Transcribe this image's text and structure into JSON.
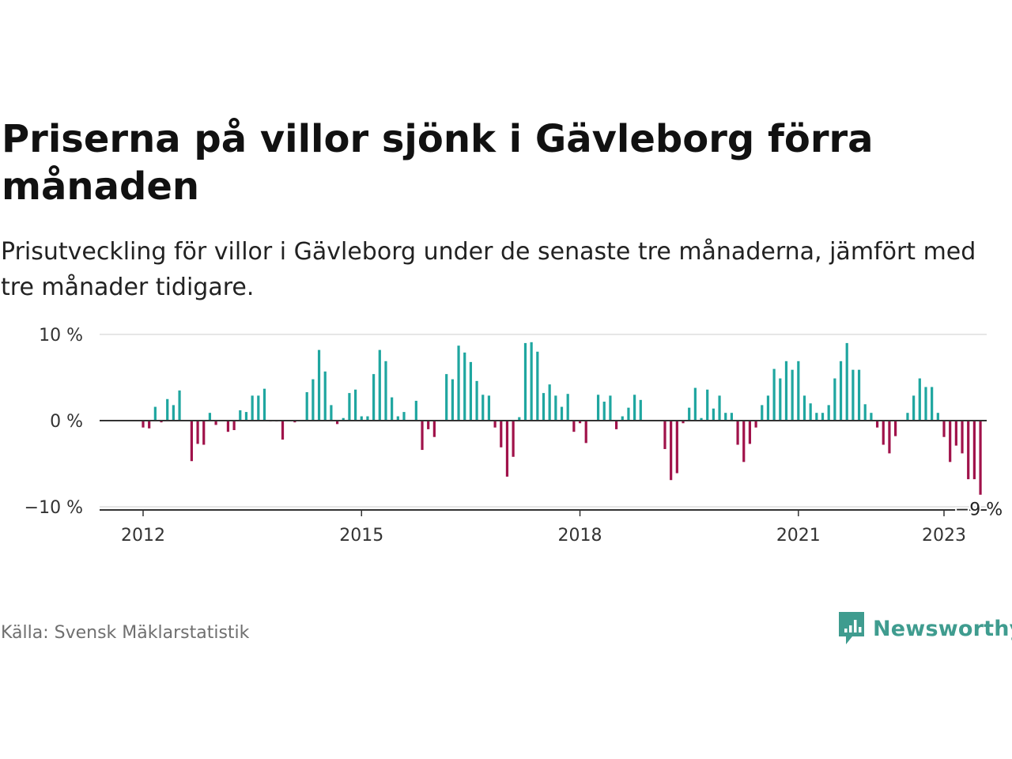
{
  "title": "Priserna på villor sjönk i Gävleborg förra månaden",
  "subtitle": "Prisutveckling för villor i Gävleborg under de senaste tre månaderna, jämfört med tre månader tidigare.",
  "source": "Källa: Svensk Mäklarstatistik",
  "brand": {
    "name": "Newsworthy",
    "icon": "newsworthy-logo-icon",
    "color": "#3f9c8f"
  },
  "colors": {
    "positive": "#1fa6a0",
    "negative": "#a0124a",
    "zero_line": "#333333",
    "grid": "#dddddd"
  },
  "chart_data": {
    "type": "bar",
    "x_start": "2012-01",
    "x_end": "2023-01",
    "x_ticks": [
      {
        "date": "2012-01",
        "label": "2012"
      },
      {
        "date": "2015-01",
        "label": "2015"
      },
      {
        "date": "2018-01",
        "label": "2018"
      },
      {
        "date": "2021-01",
        "label": "2021"
      },
      {
        "date": "2023-01",
        "label": "2023"
      }
    ],
    "y_ticks": [
      {
        "value": 10,
        "label": "10 %"
      },
      {
        "value": 0,
        "label": "0 %"
      },
      {
        "value": -10,
        "label": "−10 %"
      }
    ],
    "ylim": [
      -10,
      10
    ],
    "grid": true,
    "unit": "%",
    "last_value_label": "−9 %",
    "series": [
      {
        "values": [
          -0.8,
          -0.9,
          1.6,
          -0.2,
          2.5,
          1.8,
          3.5,
          0,
          -4.7,
          -2.7,
          -2.8,
          0.9,
          -0.5,
          0,
          -1.3,
          -1.1,
          1.2,
          1.0,
          2.9,
          2.9,
          3.7,
          -0.1,
          -0.1,
          -2.2,
          0,
          -0.2,
          0,
          3.3,
          4.8,
          8.2,
          5.7,
          1.8,
          -0.4,
          0.3,
          3.2,
          3.6,
          0.5,
          0.5,
          5.4,
          8.2,
          6.9,
          2.7,
          0.5,
          1.0,
          0,
          2.3,
          -3.4,
          -1.0,
          -1.9,
          0,
          5.4,
          4.8,
          8.7,
          7.9,
          6.8,
          4.6,
          3.0,
          2.9,
          -0.8,
          -3.1,
          -6.5,
          -4.2,
          0.4,
          9.0,
          9.1,
          8.0,
          3.2,
          4.2,
          2.9,
          1.6,
          3.1,
          -1.3,
          -0.3,
          -2.6,
          0,
          3.0,
          2.2,
          2.9,
          -1.0,
          0.5,
          1.5,
          3.0,
          2.4,
          0,
          0,
          0,
          -3.3,
          -6.9,
          -6.1,
          -0.3,
          1.5,
          3.8,
          0.3,
          3.6,
          1.4,
          2.9,
          0.9,
          0.9,
          -2.8,
          -4.8,
          -2.7,
          -0.8,
          1.8,
          2.9,
          6.0,
          4.9,
          6.9,
          5.9,
          6.9,
          2.9,
          2.0,
          0.9,
          0.9,
          1.8,
          4.9,
          6.9,
          9.0,
          5.9,
          5.9,
          1.9,
          0.9,
          -0.8,
          -2.8,
          -3.8,
          -1.8,
          0,
          0.9,
          2.9,
          4.9,
          3.9,
          3.9,
          0.9,
          -1.9,
          -4.8,
          -2.9,
          -3.8,
          -6.8,
          -6.8,
          -8.6
        ]
      }
    ]
  }
}
